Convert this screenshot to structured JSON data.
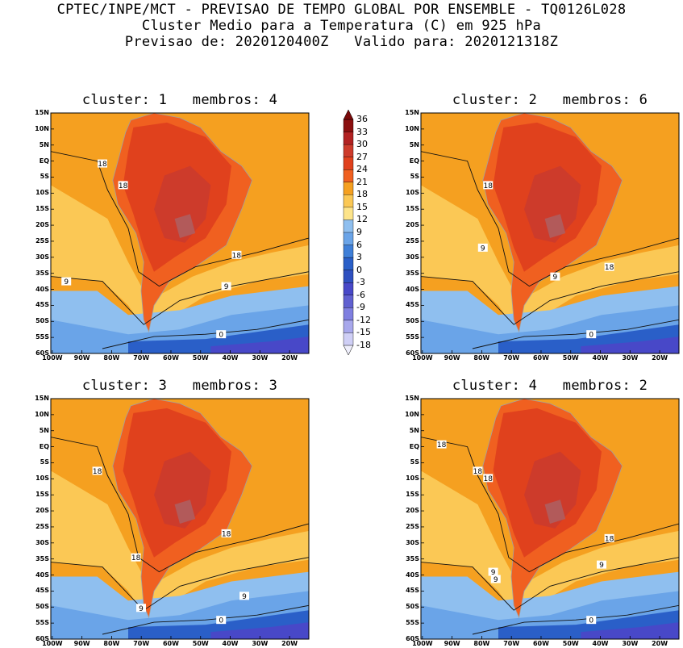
{
  "header": {
    "line1": "CPTEC/INPE/MCT - PREVISAO DE TEMPO GLOBAL POR ENSEMBLE - TQ0126L028",
    "line2": "Cluster Medio para a Temperatura (C) em 925 hPa",
    "line3": "Previsao de: 2020120400Z   Valido para: 2020121318Z"
  },
  "lat_ticks": [
    "15N",
    "10N",
    "5N",
    "EQ",
    "5S",
    "10S",
    "15S",
    "20S",
    "25S",
    "30S",
    "35S",
    "40S",
    "45S",
    "50S",
    "55S",
    "60S"
  ],
  "lon_ticks": [
    "100W",
    "90W",
    "80W",
    "70W",
    "60W",
    "50W",
    "40W",
    "30W",
    "20W"
  ],
  "colorbar": {
    "labels": [
      "36",
      "33",
      "30",
      "27",
      "24",
      "21",
      "18",
      "15",
      "12",
      "9",
      "6",
      "3",
      "0",
      "-3",
      "-6",
      "-9",
      "-12",
      "-15",
      "-18"
    ],
    "colors": [
      "#8b0f0f",
      "#b22222",
      "#cd3b2b",
      "#e0411d",
      "#f06020",
      "#f5a020",
      "#fbc855",
      "#fde48a",
      "#8fbfef",
      "#6aa4e8",
      "#3f7fd8",
      "#2a5fc8",
      "#2f50c0",
      "#4848c8",
      "#6060d0",
      "#7f7fe0",
      "#a8a8ec",
      "#cfcff6"
    ]
  },
  "panels": [
    {
      "title": "cluster: 1   membros: 4",
      "contours": [
        "18",
        "18",
        "18",
        "9",
        "9",
        "0"
      ]
    },
    {
      "title": "cluster: 2   membros: 6",
      "contours": [
        "18",
        "18",
        "9",
        "9",
        "0"
      ]
    },
    {
      "title": "cluster: 3   membros: 3",
      "contours": [
        "18",
        "18",
        "18",
        "9",
        "9",
        "0"
      ]
    },
    {
      "title": "cluster: 4   membros: 2",
      "contours": [
        "18",
        "18",
        "18",
        "18",
        "9",
        "9",
        "9",
        "0"
      ]
    }
  ]
}
